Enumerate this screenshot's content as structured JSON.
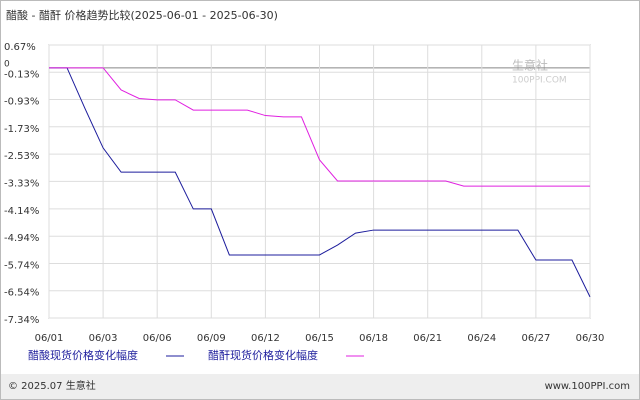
{
  "chart_data": {
    "type": "line",
    "title": "醋酸 - 醋酐 价格趋势比较(2025-06-01 - 2025-06-30)",
    "categories": [
      "06/01",
      null,
      null,
      "06/03",
      null,
      null,
      "06/06",
      null,
      null,
      "06/09",
      null,
      null,
      "06/12",
      null,
      null,
      "06/15",
      null,
      null,
      "06/18",
      null,
      null,
      "06/21",
      null,
      null,
      "06/24",
      null,
      null,
      "06/27",
      null,
      null,
      "06/30"
    ],
    "series": [
      {
        "name": "醋酸现货价格变化幅度",
        "color": "#1c1c9c",
        "values": [
          0,
          0,
          -1.2,
          -2.35,
          -3.06,
          -3.06,
          -3.06,
          -3.06,
          -4.14,
          -4.14,
          -5.49,
          -5.49,
          -5.49,
          -5.49,
          -5.49,
          -5.49,
          -5.2,
          -4.85,
          -4.76,
          -4.76,
          -4.76,
          -4.76,
          -4.76,
          -4.76,
          -4.76,
          -4.76,
          -4.76,
          -5.64,
          -5.64,
          -5.64,
          -6.72
        ]
      },
      {
        "name": "醋酐现货价格变化幅度",
        "color": "#e020e0",
        "values": [
          0,
          0,
          0,
          0,
          -0.65,
          -0.9,
          -0.94,
          -0.94,
          -1.24,
          -1.24,
          -1.24,
          -1.24,
          -1.4,
          -1.44,
          -1.44,
          -2.7,
          -3.32,
          -3.32,
          -3.32,
          -3.32,
          -3.32,
          -3.32,
          -3.32,
          -3.47,
          -3.47,
          -3.47,
          -3.47,
          -3.47,
          -3.47,
          -3.47,
          -3.47
        ]
      }
    ],
    "ylim": [
      -7.34,
      0.67
    ],
    "yticks": [
      {
        "value": 0.67,
        "label": "0.67%"
      },
      {
        "value": -0.13,
        "label": "-0.13%"
      },
      {
        "value": -0.93,
        "label": "-0.93%"
      },
      {
        "value": -1.73,
        "label": "-1.73%"
      },
      {
        "value": -2.53,
        "label": "-2.53%"
      },
      {
        "value": -3.33,
        "label": "-3.33%"
      },
      {
        "value": -4.14,
        "label": "-4.14%"
      },
      {
        "value": -4.94,
        "label": "-4.94%"
      },
      {
        "value": -5.74,
        "label": "-5.74%"
      },
      {
        "value": -6.54,
        "label": "-6.54%"
      },
      {
        "value": -7.34,
        "label": "-7.34%"
      }
    ],
    "zero_line": {
      "value": 0,
      "label": "0"
    },
    "grid": true,
    "watermark": [
      "生意社",
      "100PPI.COM"
    ],
    "footer_left": "© 2025.07 生意社",
    "footer_right": "www.100PPI.com"
  }
}
